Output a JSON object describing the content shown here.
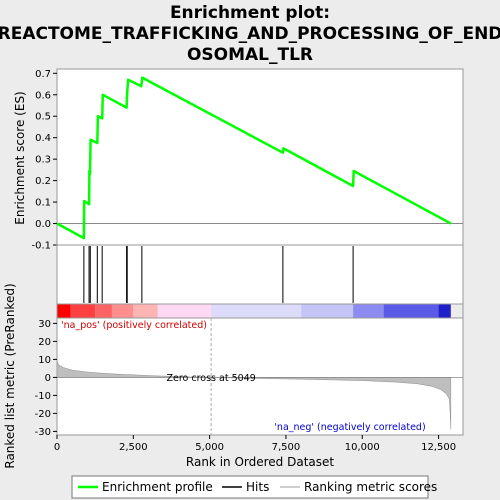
{
  "chart_data": {
    "type": "line",
    "title_line1": "Enrichment plot:",
    "title_line2": "REACTOME_TRAFFICKING_AND_PROCESSING_OF_END",
    "title_line3": "OSOMAL_TLR",
    "es_panel": {
      "ylabel": "Enrichment score (ES)",
      "ylim": [
        -0.1,
        0.72
      ],
      "yticks": [
        -0.1,
        0.0,
        0.1,
        0.2,
        0.3,
        0.4,
        0.5,
        0.6,
        0.7
      ],
      "ytick_labels": [
        "-0.1",
        "0.0",
        "0.1",
        "0.2",
        "0.3",
        "0.4",
        "0.5",
        "0.6",
        "0.7"
      ],
      "series": [
        {
          "name": "Enrichment profile",
          "color": "#00ff00",
          "x": [
            0,
            880,
            890,
            1050,
            1060,
            1080,
            1100,
            1320,
            1340,
            1480,
            1500,
            2280,
            2300,
            2330,
            2760,
            2790,
            7400,
            7420,
            9700,
            9720,
            12900
          ],
          "y": [
            0.0,
            -0.068,
            0.105,
            0.09,
            0.245,
            0.23,
            0.39,
            0.375,
            0.5,
            0.49,
            0.6,
            0.54,
            0.61,
            0.67,
            0.64,
            0.68,
            0.33,
            0.35,
            0.175,
            0.245,
            0.0
          ]
        }
      ]
    },
    "hits": {
      "name": "Hits",
      "positions": [
        880,
        1050,
        1090,
        1320,
        1480,
        2280,
        2300,
        2780,
        7400,
        9700
      ]
    },
    "rank_panel": {
      "ylabel": "Ranked list metric (PreRanked)",
      "xlabel": "Rank in Ordered Dataset",
      "xlim": [
        0,
        13300
      ],
      "xticks": [
        0,
        2500,
        5000,
        7500,
        10000,
        12500
      ],
      "xtick_labels": [
        "0",
        "2,500",
        "5,000",
        "7,500",
        "10,000",
        "12,500"
      ],
      "ylim": [
        -32,
        33
      ],
      "yticks": [
        -30,
        -20,
        -10,
        0,
        10,
        20,
        30
      ],
      "ytick_labels": [
        "-30",
        "-20",
        "-10",
        "0",
        "10",
        "20",
        "30"
      ],
      "series_name": "Ranking metric scores",
      "profile_x": [
        0,
        50,
        200,
        500,
        1000,
        1500,
        2000,
        3000,
        4000,
        5049,
        6000,
        8000,
        10000,
        11000,
        11800,
        12300,
        12600,
        12750,
        12850,
        12880,
        12900
      ],
      "profile_y": [
        9,
        7,
        5.5,
        4,
        3,
        2.3,
        1.8,
        1,
        0.4,
        0,
        -0.4,
        -1,
        -1.8,
        -2.5,
        -3.5,
        -5,
        -7,
        -9,
        -12,
        -20,
        -29
      ],
      "zero_cross": 5049,
      "zero_cross_label": "Zero cross at 5049",
      "pos_label": "'na_pos' (positively correlated)",
      "neg_label": "'na_neg' (negatively correlated)"
    },
    "heat_bar": {
      "segments": [
        {
          "x0": 0,
          "x1": 450,
          "color": "#ff0000"
        },
        {
          "x0": 450,
          "x1": 1250,
          "color": "#ff4040"
        },
        {
          "x0": 1250,
          "x1": 1800,
          "color": "#ff6464"
        },
        {
          "x0": 1800,
          "x1": 2500,
          "color": "#ff8e8e"
        },
        {
          "x0": 2500,
          "x1": 3300,
          "color": "#ffb4b4"
        },
        {
          "x0": 3300,
          "x1": 5049,
          "color": "#ffd8f4"
        },
        {
          "x0": 5049,
          "x1": 8000,
          "color": "#dcdcfa"
        },
        {
          "x0": 8000,
          "x1": 9700,
          "color": "#c4c4f6"
        },
        {
          "x0": 9700,
          "x1": 10700,
          "color": "#8c8cf0"
        },
        {
          "x0": 10700,
          "x1": 12500,
          "color": "#5a5ae6"
        },
        {
          "x0": 12500,
          "x1": 12900,
          "color": "#2020c8"
        }
      ]
    },
    "legend": [
      {
        "label": "Enrichment profile",
        "color": "#00ff00"
      },
      {
        "label": "Hits",
        "color": "#000000"
      },
      {
        "label": "Ranking metric scores",
        "color": "#bebebe"
      }
    ],
    "colors": {
      "pos_label": "#cc0000",
      "neg_label": "#0000cc",
      "zero_cross_line": "#aaaaaa"
    }
  }
}
